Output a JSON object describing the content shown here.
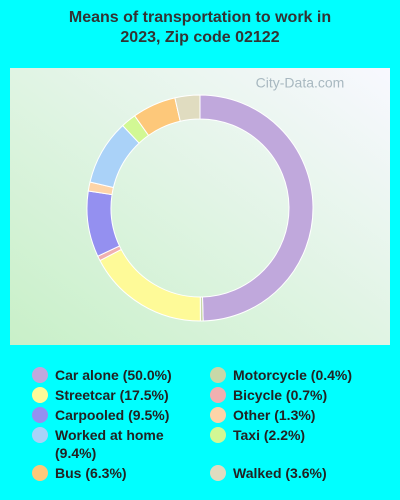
{
  "chart_data": {
    "type": "donut",
    "title": "Means of transportation to work in 2023, Zip code 02122",
    "watermark": "City-Data.com",
    "categories": [
      "Car alone (50.0%)",
      "Motorcycle (0.4%)",
      "Streetcar (17.5%)",
      "Bicycle (0.7%)",
      "Carpooled (9.5%)",
      "Other (1.3%)",
      "Worked at home (9.4%)",
      "Taxi (2.2%)",
      "Bus (6.3%)",
      "Walked (3.6%)"
    ],
    "values": [
      50.0,
      0.4,
      17.5,
      0.7,
      9.5,
      1.3,
      9.4,
      2.2,
      6.3,
      3.6
    ],
    "colors": [
      "#c0a8dc",
      "#c8d8a8",
      "#fefa98",
      "#f0b0b0",
      "#9490f0",
      "#fdd4a8",
      "#aad2f8",
      "#d2f894",
      "#fdc87a",
      "#e0dcc0"
    ]
  }
}
